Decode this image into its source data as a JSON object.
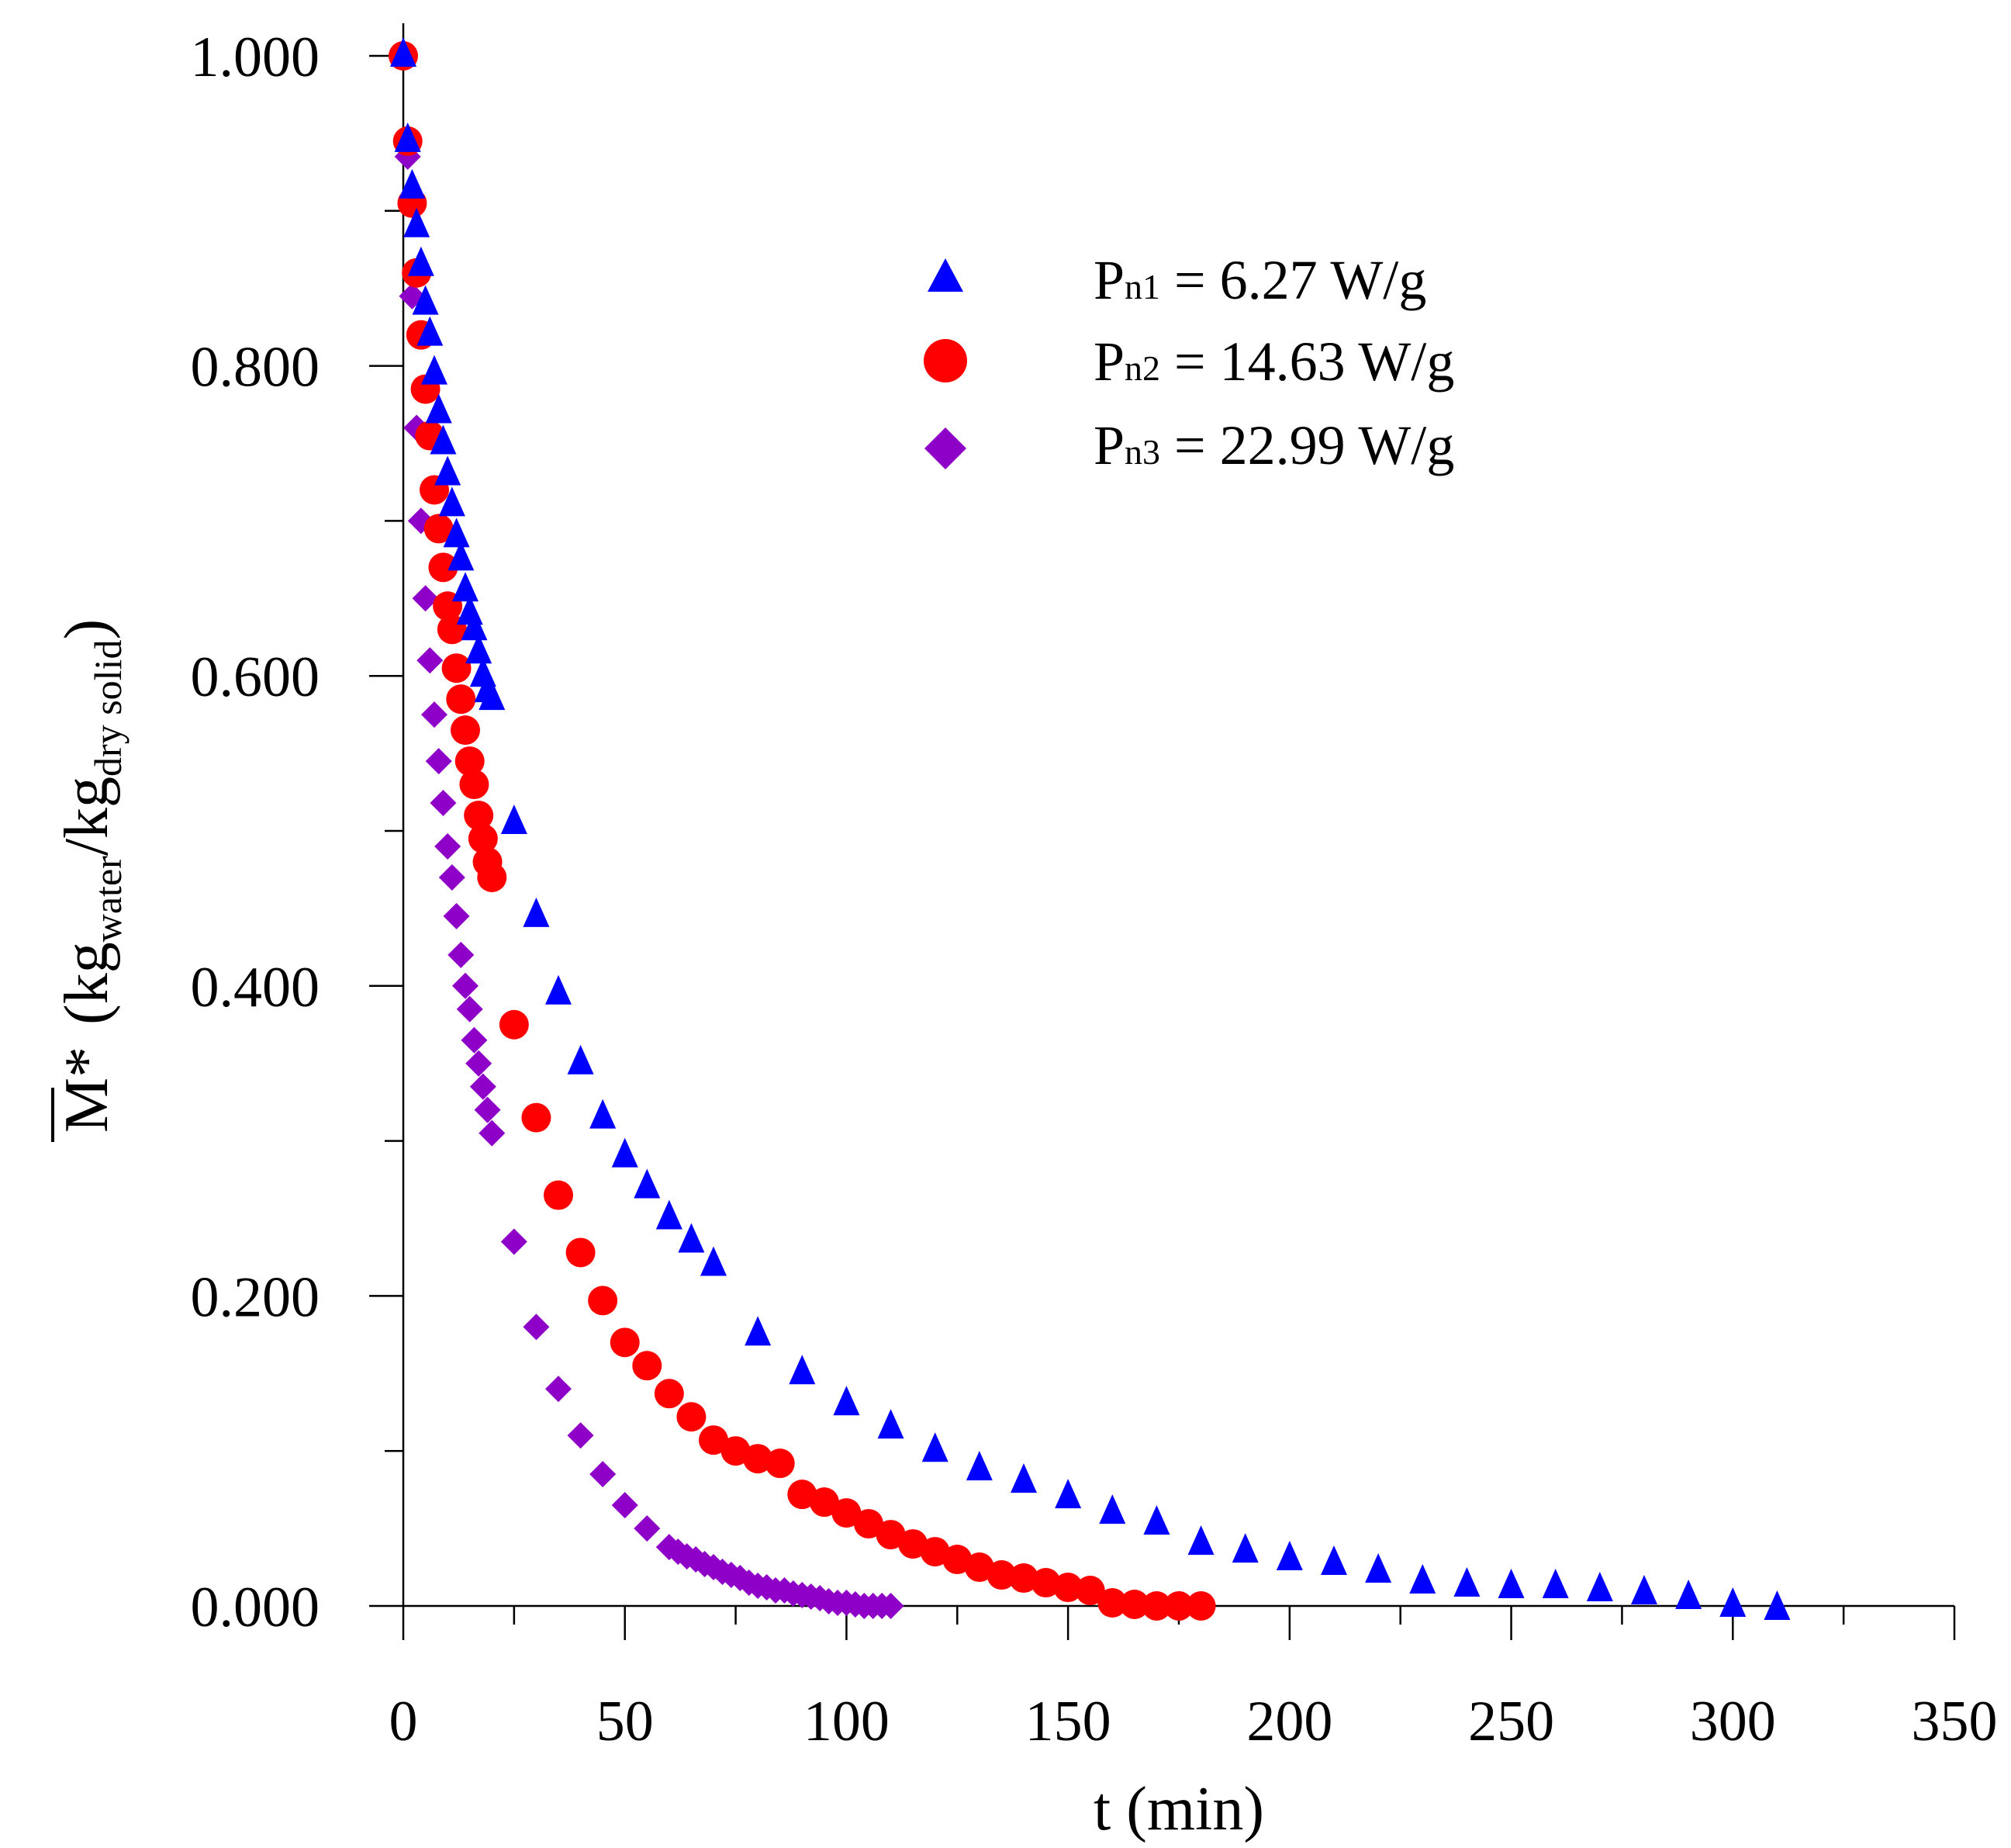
{
  "chart_data": {
    "type": "scatter",
    "xlabel": "t (min)",
    "ylabel": {
      "symbol": "M*",
      "open": "(kg",
      "sub1": "water",
      "slash": "/kg",
      "sub2": "dry solid",
      "close": ")"
    },
    "xlim": [
      0,
      350
    ],
    "ylim": [
      0,
      1
    ],
    "xticks": [
      0,
      50,
      100,
      150,
      200,
      250,
      300,
      350
    ],
    "xtick_labels": [
      "0",
      "50",
      "100",
      "150",
      "200",
      "250",
      "300",
      "350"
    ],
    "yticks": [
      0,
      0.2,
      0.4,
      0.6,
      0.8,
      1.0
    ],
    "ytick_labels": [
      "0.000",
      "0.200",
      "0.400",
      "0.600",
      "0.800",
      "1.000"
    ],
    "grid": false,
    "legend_position": "top-right",
    "series": [
      {
        "name": "Pn1 = 6.27 W/g",
        "label_main": "P",
        "label_sub": "n1",
        "label_rest": " = 6.27 W/g",
        "marker": "triangle",
        "color": "#0000ff",
        "x": [
          0,
          1,
          2,
          3,
          4,
          5,
          6,
          7,
          8,
          9,
          10,
          11,
          12,
          13,
          14,
          15,
          16,
          17,
          18,
          19,
          20,
          25,
          30,
          35,
          40,
          45,
          50,
          55,
          60,
          65,
          70,
          80,
          90,
          100,
          110,
          120,
          130,
          140,
          150,
          160,
          170,
          180,
          190,
          200,
          210,
          220,
          230,
          240,
          250,
          260,
          270,
          280,
          290,
          300,
          310
        ],
        "y": [
          1.0,
          0.945,
          0.915,
          0.89,
          0.865,
          0.84,
          0.82,
          0.795,
          0.77,
          0.75,
          0.73,
          0.71,
          0.69,
          0.675,
          0.655,
          0.64,
          0.63,
          0.615,
          0.6,
          0.59,
          0.585,
          0.505,
          0.445,
          0.395,
          0.35,
          0.315,
          0.29,
          0.27,
          0.25,
          0.235,
          0.22,
          0.175,
          0.15,
          0.13,
          0.115,
          0.1,
          0.088,
          0.08,
          0.07,
          0.06,
          0.053,
          0.04,
          0.035,
          0.03,
          0.027,
          0.022,
          0.015,
          0.013,
          0.012,
          0.012,
          0.01,
          0.008,
          0.005,
          0.0,
          -0.002
        ]
      },
      {
        "name": "Pn2 = 14.63 W/g",
        "label_main": "P",
        "label_sub": "n2",
        "label_rest": " = 14.63 W/g",
        "marker": "circle",
        "color": "#ff0000",
        "x": [
          0,
          1,
          2,
          3,
          4,
          5,
          6,
          7,
          8,
          9,
          10,
          11,
          12,
          13,
          14,
          15,
          16,
          17,
          18,
          19,
          20,
          25,
          30,
          35,
          40,
          45,
          50,
          55,
          60,
          65,
          70,
          75,
          80,
          85,
          90,
          95,
          100,
          105,
          110,
          115,
          120,
          125,
          130,
          135,
          140,
          145,
          150,
          155,
          160,
          165,
          170,
          175,
          180
        ],
        "y": [
          1.0,
          0.945,
          0.905,
          0.86,
          0.82,
          0.785,
          0.755,
          0.72,
          0.695,
          0.67,
          0.645,
          0.63,
          0.605,
          0.585,
          0.565,
          0.545,
          0.53,
          0.51,
          0.495,
          0.48,
          0.47,
          0.375,
          0.315,
          0.265,
          0.228,
          0.197,
          0.17,
          0.155,
          0.137,
          0.122,
          0.107,
          0.1,
          0.095,
          0.092,
          0.072,
          0.067,
          0.06,
          0.053,
          0.046,
          0.04,
          0.035,
          0.03,
          0.025,
          0.02,
          0.018,
          0.015,
          0.012,
          0.01,
          0.002,
          0.001,
          0.0,
          0.0,
          0.0
        ]
      },
      {
        "name": "Pn3 = 22.99 W/g",
        "label_main": "P",
        "label_sub": "n3",
        "label_rest": " = 22.99 W/g",
        "marker": "diamond",
        "color": "#8e00c8",
        "x": [
          1,
          2,
          3,
          4,
          5,
          6,
          7,
          8,
          9,
          10,
          11,
          12,
          13,
          14,
          15,
          16,
          17,
          18,
          19,
          20,
          25,
          30,
          35,
          40,
          45,
          50,
          55,
          60,
          62,
          64,
          66,
          68,
          70,
          72,
          74,
          76,
          78,
          80,
          82,
          84,
          86,
          88,
          90,
          92,
          94,
          96,
          98,
          100,
          102,
          104,
          106,
          108,
          110
        ],
        "y": [
          0.935,
          0.845,
          0.76,
          0.7,
          0.65,
          0.61,
          0.575,
          0.545,
          0.518,
          0.49,
          0.47,
          0.445,
          0.42,
          0.4,
          0.385,
          0.365,
          0.35,
          0.335,
          0.32,
          0.305,
          0.235,
          0.18,
          0.14,
          0.11,
          0.085,
          0.065,
          0.05,
          0.038,
          0.035,
          0.032,
          0.03,
          0.027,
          0.025,
          0.022,
          0.02,
          0.018,
          0.015,
          0.013,
          0.012,
          0.01,
          0.01,
          0.008,
          0.007,
          0.006,
          0.005,
          0.003,
          0.002,
          0.002,
          0.001,
          0.0,
          0.0,
          0.0,
          0.0
        ]
      }
    ]
  }
}
